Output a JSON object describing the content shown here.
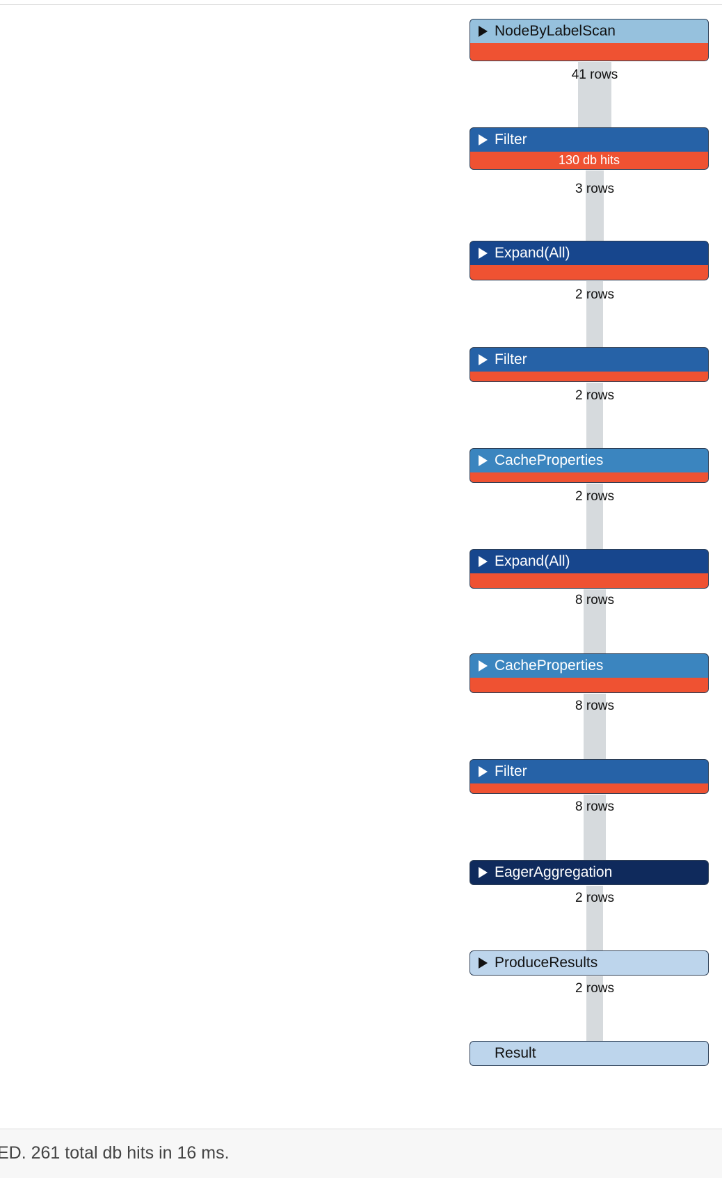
{
  "plan": {
    "operators": [
      {
        "name": "NodeByLabelScan",
        "db_hits": "",
        "hits_level": "large",
        "color": "#96c1dd",
        "text_color": "#111111",
        "expand": true
      },
      {
        "name": "Filter",
        "db_hits": "130 db hits",
        "hits_level": "large",
        "color": "#2662a7",
        "text_color": "#ffffff",
        "expand": true
      },
      {
        "name": "Expand(All)",
        "db_hits": "",
        "hits_level": "medium",
        "color": "#17468d",
        "text_color": "#ffffff",
        "expand": true
      },
      {
        "name": "Filter",
        "db_hits": "",
        "hits_level": "small",
        "color": "#2662a7",
        "text_color": "#ffffff",
        "expand": true
      },
      {
        "name": "CacheProperties",
        "db_hits": "",
        "hits_level": "small",
        "color": "#3b85bf",
        "text_color": "#ffffff",
        "expand": true
      },
      {
        "name": "Expand(All)",
        "db_hits": "",
        "hits_level": "medium",
        "color": "#17468d",
        "text_color": "#ffffff",
        "expand": true
      },
      {
        "name": "CacheProperties",
        "db_hits": "",
        "hits_level": "medium",
        "color": "#3b85bf",
        "text_color": "#ffffff",
        "expand": true
      },
      {
        "name": "Filter",
        "db_hits": "",
        "hits_level": "small",
        "color": "#2662a7",
        "text_color": "#ffffff",
        "expand": true
      },
      {
        "name": "EagerAggregation",
        "db_hits": "",
        "hits_level": "none",
        "color": "#0f2a5c",
        "text_color": "#ffffff",
        "expand": true
      },
      {
        "name": "ProduceResults",
        "db_hits": "",
        "hits_level": "none",
        "color": "#bdd5ec",
        "text_color": "#111111",
        "expand": true
      },
      {
        "name": "Result",
        "db_hits": "",
        "hits_level": "none",
        "color": "#bdd5ec",
        "text_color": "#111111",
        "expand": false
      }
    ],
    "row_labels": [
      "41 rows",
      "3 rows",
      "2 rows",
      "2 rows",
      "2 rows",
      "8 rows",
      "8 rows",
      "8 rows",
      "2 rows",
      "2 rows"
    ],
    "row_counts": [
      41,
      3,
      2,
      2,
      2,
      8,
      8,
      8,
      2,
      2
    ],
    "connector_color": "#d6dadd",
    "hits_color": "#ef5232"
  },
  "footer": {
    "summary": "ED. 261 total db hits in 16 ms."
  }
}
